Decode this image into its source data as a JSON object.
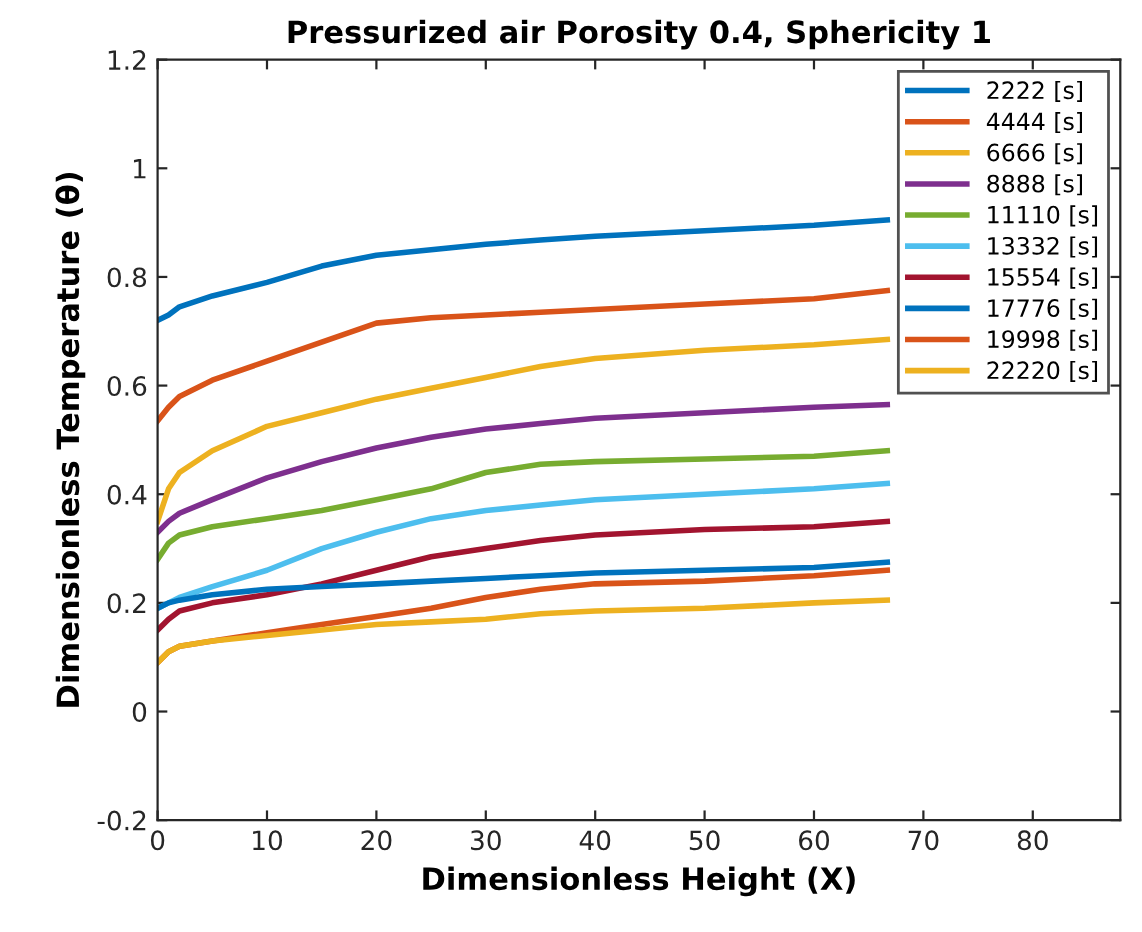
{
  "chart_data": {
    "type": "line",
    "title": "Pressurized air Porosity 0.4, Sphericity 1",
    "xlabel": "Dimensionless Height (X)",
    "ylabel": "Dimensionless Temperature (θ)",
    "x": [
      0,
      1,
      2,
      5,
      10,
      15,
      20,
      25,
      30,
      35,
      40,
      50,
      60,
      66.7
    ],
    "xlim": [
      0,
      88
    ],
    "xticks": [
      0,
      10,
      20,
      30,
      40,
      50,
      60,
      70,
      80
    ],
    "ylim": [
      -0.2,
      1.2
    ],
    "yticks": [
      -0.2,
      0,
      0.2,
      0.4,
      0.6,
      0.8,
      1,
      1.2
    ],
    "grid": false,
    "legend": "top right",
    "line_style": "solid",
    "marker": "none",
    "series": [
      {
        "name": "2222 [s]",
        "color": "#0072bd",
        "values": [
          0.72,
          0.73,
          0.745,
          0.765,
          0.79,
          0.82,
          0.84,
          0.85,
          0.86,
          0.868,
          0.875,
          0.885,
          0.895,
          0.905
        ]
      },
      {
        "name": "4444 [s]",
        "color": "#d95319",
        "values": [
          0.535,
          0.56,
          0.58,
          0.61,
          0.645,
          0.68,
          0.715,
          0.725,
          0.73,
          0.735,
          0.74,
          0.75,
          0.76,
          0.775
        ]
      },
      {
        "name": "6666 [s]",
        "color": "#edb120",
        "values": [
          0.35,
          0.41,
          0.44,
          0.48,
          0.525,
          0.55,
          0.575,
          0.595,
          0.615,
          0.635,
          0.65,
          0.665,
          0.675,
          0.685
        ]
      },
      {
        "name": "8888 [s]",
        "color": "#7e2f8e",
        "values": [
          0.33,
          0.35,
          0.365,
          0.39,
          0.43,
          0.46,
          0.485,
          0.505,
          0.52,
          0.53,
          0.54,
          0.55,
          0.56,
          0.565
        ]
      },
      {
        "name": "11110 [s]",
        "color": "#77ac30",
        "values": [
          0.28,
          0.31,
          0.325,
          0.34,
          0.355,
          0.37,
          0.39,
          0.41,
          0.44,
          0.455,
          0.46,
          0.465,
          0.47,
          0.48
        ]
      },
      {
        "name": "13332 [s]",
        "color": "#4dbeee",
        "values": [
          0.19,
          0.2,
          0.21,
          0.23,
          0.26,
          0.3,
          0.33,
          0.355,
          0.37,
          0.38,
          0.39,
          0.4,
          0.41,
          0.42
        ]
      },
      {
        "name": "15554 [s]",
        "color": "#a2142f",
        "values": [
          0.15,
          0.17,
          0.185,
          0.2,
          0.215,
          0.235,
          0.26,
          0.285,
          0.3,
          0.315,
          0.325,
          0.335,
          0.34,
          0.35
        ]
      },
      {
        "name": "17776 [s]",
        "color": "#0072bd",
        "values": [
          0.19,
          0.2,
          0.205,
          0.215,
          0.225,
          0.23,
          0.235,
          0.24,
          0.245,
          0.25,
          0.255,
          0.26,
          0.265,
          0.275
        ]
      },
      {
        "name": "19998 [s]",
        "color": "#d95319",
        "values": [
          0.09,
          0.11,
          0.12,
          0.13,
          0.145,
          0.16,
          0.175,
          0.19,
          0.21,
          0.225,
          0.235,
          0.24,
          0.25,
          0.26
        ]
      },
      {
        "name": "22220 [s]",
        "color": "#edb120",
        "values": [
          0.09,
          0.11,
          0.12,
          0.13,
          0.14,
          0.15,
          0.16,
          0.165,
          0.17,
          0.18,
          0.185,
          0.19,
          0.2,
          0.205
        ]
      }
    ]
  }
}
